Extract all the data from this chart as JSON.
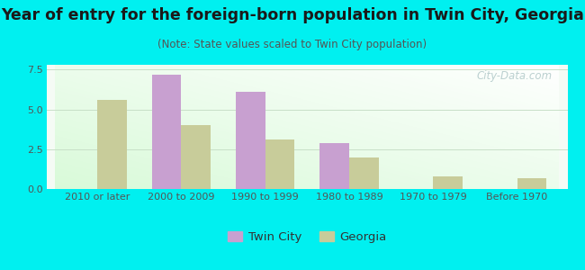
{
  "title": "Year of entry for the foreign-born population in Twin City, Georgia",
  "subtitle": "(Note: State values scaled to Twin City population)",
  "categories": [
    "2010 or later",
    "2000 to 2009",
    "1990 to 1999",
    "1980 to 1989",
    "1970 to 1979",
    "Before 1970"
  ],
  "twin_city_values": [
    0,
    7.2,
    6.1,
    2.9,
    0,
    0
  ],
  "georgia_values": [
    5.6,
    4.0,
    3.1,
    2.0,
    0.8,
    0.7
  ],
  "twin_city_color": "#c8a0d0",
  "georgia_color": "#c8cc9a",
  "background_outer": "#00f0f0",
  "ylim": [
    0,
    7.8
  ],
  "yticks": [
    0,
    2.5,
    5,
    7.5
  ],
  "bar_width": 0.35,
  "title_fontsize": 12.5,
  "subtitle_fontsize": 8.5,
  "tick_fontsize": 8,
  "legend_fontsize": 9.5,
  "watermark_text": "City-Data.com"
}
